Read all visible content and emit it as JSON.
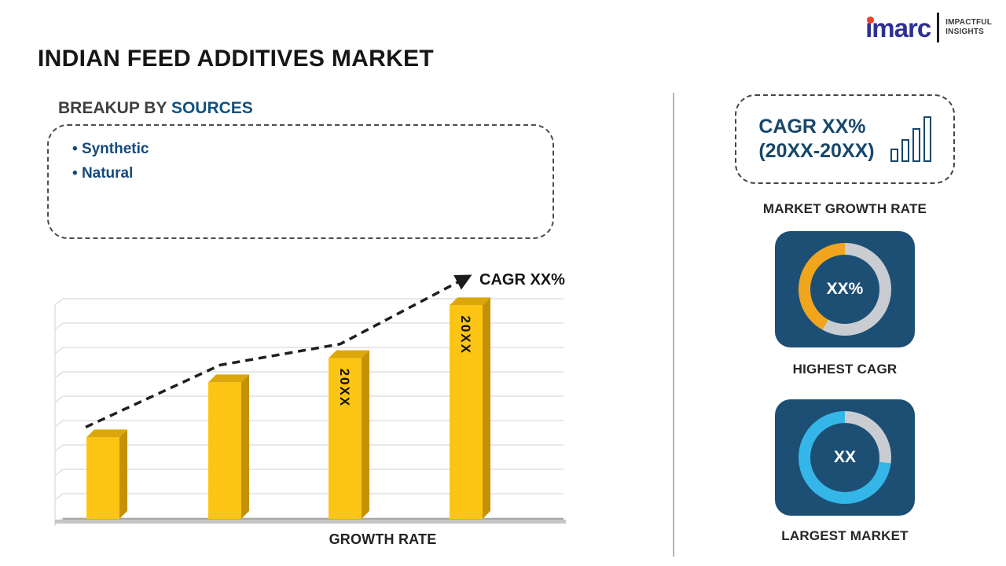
{
  "page_title": "INDIAN FEED ADDITIVES MARKET",
  "logo": {
    "brand": "imarc",
    "tagline_top": "IMPACTFUL",
    "tagline_bottom": "INSIGHTS"
  },
  "breakup": {
    "heading_prefix": "BREAKUP BY",
    "heading_highlight": "SOURCES",
    "items": [
      "Synthetic",
      "Natural"
    ]
  },
  "right_panel": {
    "cagr_line1": "CAGR XX%",
    "cagr_line2": "(20XX-20XX)",
    "cagr_box_icon": "bar-chart-icon",
    "market_growth_rate_label": "MARKET GROWTH RATE",
    "highest_cagr_label": "HIGHEST CAGR",
    "largest_market_label": "LARGEST MARKET"
  },
  "chart_data": [
    {
      "type": "bar",
      "title": "GROWTH RATE",
      "xlabel": "GROWTH RATE",
      "bar_labels": [
        "",
        "",
        "20XX",
        "20XX"
      ],
      "values": [
        37,
        62,
        73,
        97
      ],
      "ylim": [
        0,
        100
      ],
      "grid": true,
      "bar_color": "#FDC513",
      "trend_label": "CAGR XX%",
      "trend_style": "dashed-arrow"
    },
    {
      "type": "donut",
      "label": "HIGHEST CAGR",
      "center_text": "XX%",
      "segments": [
        {
          "color": "#c9cdd2",
          "pct": 58
        },
        {
          "color": "#F0A51D",
          "pct": 42
        }
      ]
    },
    {
      "type": "donut",
      "label": "LARGEST MARKET",
      "center_text": "XX",
      "segments": [
        {
          "color": "#c9cdd2",
          "pct": 27
        },
        {
          "color": "#35B6E9",
          "pct": 73
        }
      ]
    }
  ],
  "colors": {
    "navy_tile": "#1d4f74",
    "heading_blue": "#11527f",
    "gold": "#FDC513",
    "amber": "#F0A51D",
    "cyan": "#35B6E9",
    "gray_track": "#c9cdd2",
    "logo_blue": "#2e3192",
    "logo_red": "#e8432d"
  }
}
